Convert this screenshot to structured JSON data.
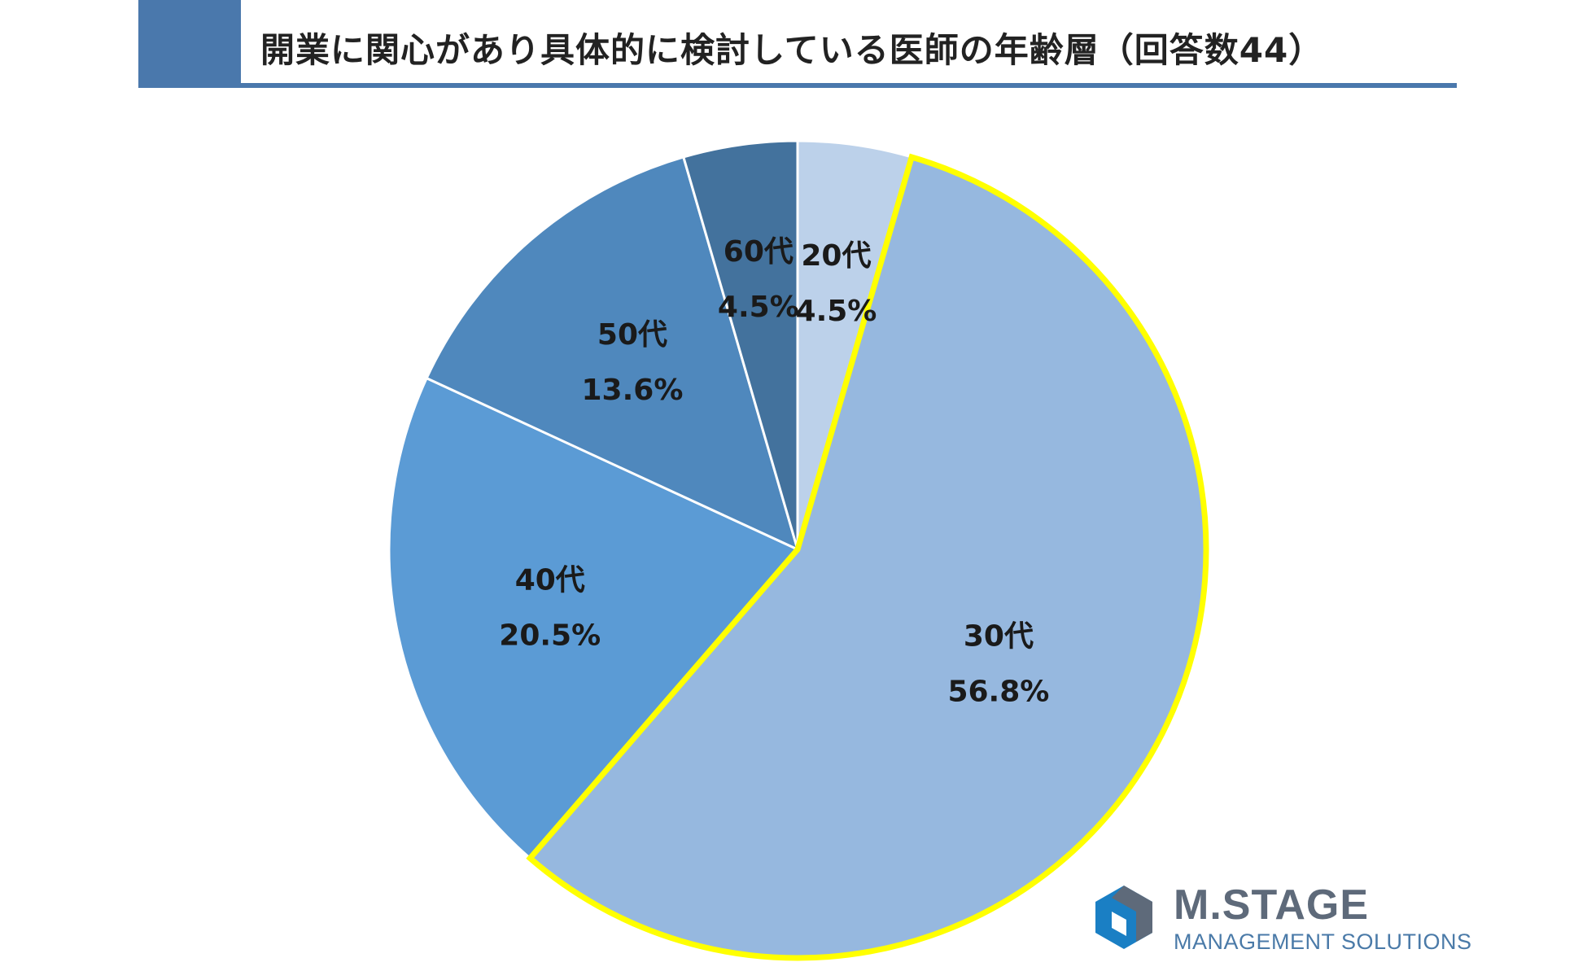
{
  "title": "開業に関心があり具体的に検討している医師の年齢層（回答数44）",
  "colors": {
    "title_bar": "#4a78ac",
    "highlight_outline": "#ffff00",
    "slice_separator": "#ffffff"
  },
  "chart_data": {
    "type": "pie",
    "slices": [
      {
        "label": "20代",
        "value": 4.5,
        "value_label": "4.5%",
        "color": "#bcd1ea",
        "highlight": false
      },
      {
        "label": "30代",
        "value": 56.8,
        "value_label": "56.8%",
        "color": "#96b8df",
        "highlight": true
      },
      {
        "label": "40代",
        "value": 20.5,
        "value_label": "20.5%",
        "color": "#5b9bd5",
        "highlight": false
      },
      {
        "label": "50代",
        "value": 13.6,
        "value_label": "13.6%",
        "color": "#4f88bd",
        "highlight": false
      },
      {
        "label": "60代",
        "value": 4.5,
        "value_label": "4.5%",
        "color": "#43729d",
        "highlight": false
      }
    ],
    "start_angle": "12 o'clock",
    "direction": "clockwise",
    "legend": "none"
  },
  "logo": {
    "name": "M.STAGE",
    "tagline": "MANAGEMENT SOLUTIONS",
    "mark_colors": [
      "#1a7fc4",
      "#5e6a7a"
    ]
  }
}
